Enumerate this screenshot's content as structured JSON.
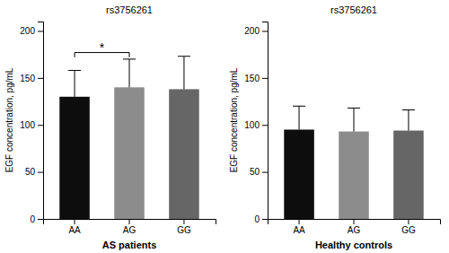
{
  "chart_data": [
    {
      "type": "bar",
      "title": "rs3756261",
      "xlabel": "AS patients",
      "ylabel": "EGF concentration, pg/mL",
      "categories": [
        "AA",
        "AG",
        "GG"
      ],
      "values": [
        130,
        140,
        138
      ],
      "errors": [
        28,
        30,
        35
      ],
      "colors": [
        "#0d0d0d",
        "#8c8c8c",
        "#666666"
      ],
      "ylim": [
        0,
        210
      ],
      "yticks": [
        0,
        50,
        100,
        150,
        200
      ],
      "annotations": [
        {
          "text": "*",
          "y": 178,
          "between": [
            "AA",
            "AG"
          ],
          "bracket_y": 177,
          "bracket_drop": 5
        }
      ]
    },
    {
      "type": "bar",
      "title": "rs3756261",
      "xlabel": "Healthy controls",
      "ylabel": "EGF concentration, pg/mL",
      "categories": [
        "AA",
        "AG",
        "GG"
      ],
      "values": [
        95,
        93,
        94
      ],
      "errors": [
        25,
        25,
        22
      ],
      "colors": [
        "#0d0d0d",
        "#8c8c8c",
        "#666666"
      ],
      "ylim": [
        0,
        210
      ],
      "yticks": [
        0,
        50,
        100,
        150,
        200
      ]
    }
  ]
}
